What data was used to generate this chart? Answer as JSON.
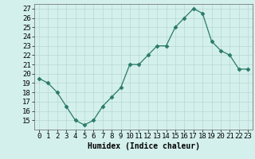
{
  "xlabel": "Humidex (Indice chaleur)",
  "x_values": [
    0,
    1,
    2,
    3,
    4,
    5,
    6,
    7,
    8,
    9,
    10,
    11,
    12,
    13,
    14,
    15,
    16,
    17,
    18,
    19,
    20,
    21,
    22,
    23
  ],
  "y_values": [
    19.5,
    19,
    18,
    16.5,
    15,
    14.5,
    15,
    16.5,
    17.5,
    18.5,
    21,
    21,
    22,
    23,
    23,
    25,
    26,
    27,
    26.5,
    23.5,
    22.5,
    22,
    20.5,
    20.5
  ],
  "ylim": [
    14.0,
    27.5
  ],
  "yticks": [
    15,
    16,
    17,
    18,
    19,
    20,
    21,
    22,
    23,
    24,
    25,
    26,
    27
  ],
  "line_color": "#2a7a6a",
  "marker": "D",
  "marker_size": 2.5,
  "bg_color": "#d4f0ec",
  "grid_color": "#b8d8d2",
  "label_fontsize": 7,
  "tick_fontsize": 6.5
}
